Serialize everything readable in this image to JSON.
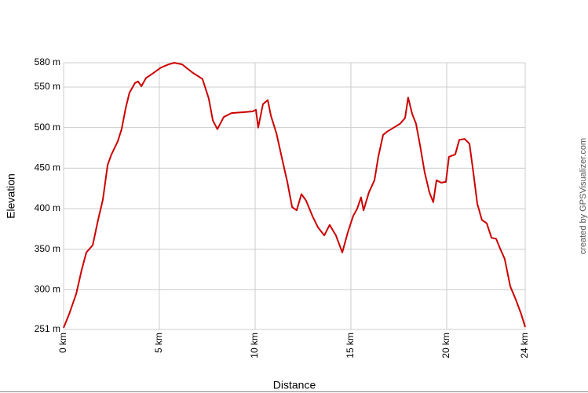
{
  "chart_data": {
    "type": "line",
    "x_label": "Distance",
    "y_label": "Elevation",
    "credit": "created by GPSVisualizer.com",
    "grid": true,
    "xlim": [
      0,
      24.1
    ],
    "ylim": [
      251,
      580
    ],
    "xticks": [
      {
        "value": 0,
        "label": "0 km"
      },
      {
        "value": 5,
        "label": "5 km"
      },
      {
        "value": 10,
        "label": "10 km"
      },
      {
        "value": 15,
        "label": "15 km"
      },
      {
        "value": 20,
        "label": "20 km"
      },
      {
        "value": 24.1,
        "label": "24 km"
      }
    ],
    "yticks": [
      {
        "value": 251,
        "label": "251 m"
      },
      {
        "value": 300,
        "label": "300 m"
      },
      {
        "value": 350,
        "label": "350 m"
      },
      {
        "value": 400,
        "label": "400 m"
      },
      {
        "value": 450,
        "label": "450 m"
      },
      {
        "value": 500,
        "label": "500 m"
      },
      {
        "value": 550,
        "label": "550 m"
      },
      {
        "value": 580,
        "label": "580 m"
      }
    ],
    "x": [
      0,
      0.29,
      0.66,
      0.94,
      1.19,
      1.52,
      1.8,
      2.05,
      2.3,
      2.5,
      2.83,
      3.03,
      3.24,
      3.44,
      3.73,
      3.89,
      4.06,
      4.3,
      4.67,
      5.08,
      5.49,
      5.78,
      6.19,
      6.72,
      7.25,
      7.58,
      7.79,
      8.03,
      8.36,
      8.77,
      9.39,
      9.88,
      10.04,
      10.16,
      10.41,
      10.66,
      10.82,
      11.11,
      11.43,
      11.68,
      11.93,
      12.17,
      12.42,
      12.66,
      12.99,
      13.28,
      13.61,
      13.89,
      14.22,
      14.55,
      14.84,
      15.12,
      15.33,
      15.53,
      15.66,
      15.94,
      16.23,
      16.43,
      16.68,
      16.89,
      17.17,
      17.58,
      17.83,
      17.99,
      18.2,
      18.4,
      18.61,
      18.85,
      19.1,
      19.3,
      19.47,
      19.71,
      19.96,
      20.12,
      20.45,
      20.66,
      20.94,
      21.19,
      21.39,
      21.6,
      21.84,
      22.09,
      22.34,
      22.58,
      22.79,
      23.03,
      23.32,
      23.61,
      23.89,
      24.1
    ],
    "series": [
      {
        "name": "Elevation",
        "color": "#cc0000",
        "values": [
          253,
          270,
          295,
          324,
          346,
          355,
          386,
          411,
          454,
          467,
          483,
          498,
          524,
          543,
          555,
          557,
          551,
          561,
          567,
          574,
          578,
          580,
          578,
          568,
          560,
          536,
          509,
          498,
          513,
          518,
          519,
          520,
          522,
          500,
          529,
          534,
          515,
          493,
          459,
          433,
          402,
          398,
          418,
          410,
          391,
          377,
          367,
          380,
          367,
          346,
          371,
          391,
          400,
          414,
          398,
          420,
          435,
          464,
          491,
          495,
          499,
          505,
          512,
          537,
          517,
          505,
          478,
          445,
          420,
          408,
          435,
          432,
          433,
          464,
          467,
          485,
          486,
          480,
          445,
          406,
          386,
          382,
          364,
          363,
          351,
          338,
          304,
          288,
          270,
          254
        ]
      }
    ]
  }
}
